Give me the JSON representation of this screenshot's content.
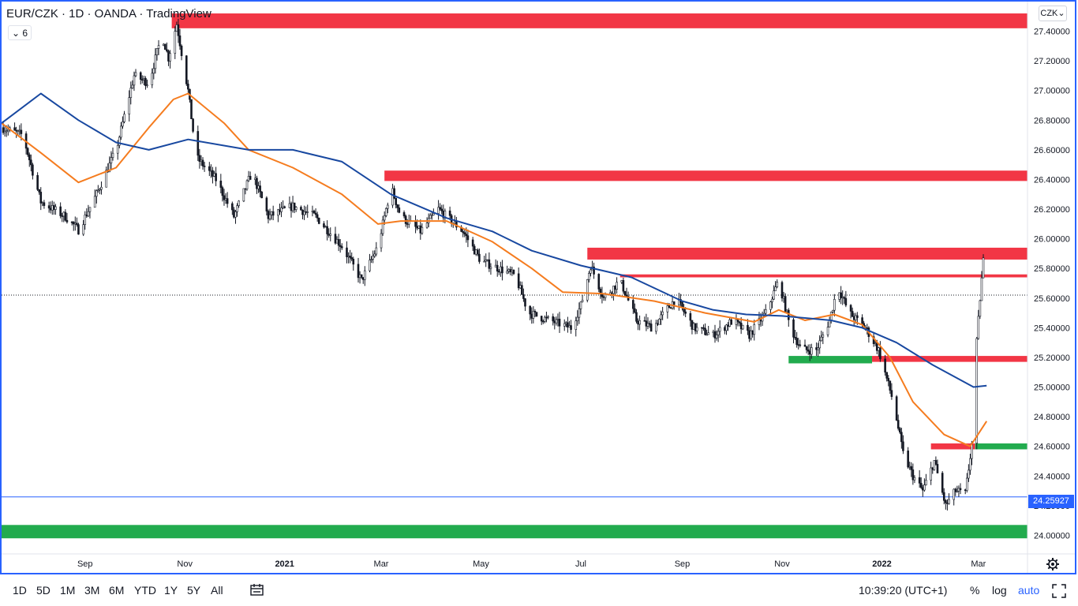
{
  "header": {
    "title": "EUR/CZK · 1D · OANDA · TradingView",
    "indicator_count": "6",
    "collapse_icon": "chevron-down-icon"
  },
  "currency_button": {
    "label": "CZK",
    "icon": "chevron-down-icon"
  },
  "chart_data": {
    "type": "candlestick",
    "symbol": "EUR/CZK",
    "interval": "1D",
    "source": "OANDA",
    "ylim": [
      23.88,
      27.6
    ],
    "y_ticks": [
      "27.40000",
      "27.20000",
      "27.00000",
      "26.80000",
      "26.60000",
      "26.40000",
      "26.20000",
      "26.00000",
      "25.80000",
      "25.60000",
      "25.40000",
      "25.20000",
      "25.00000",
      "24.80000",
      "24.60000",
      "24.40000",
      "24.20000",
      "24.00000"
    ],
    "y_tick_values": [
      27.4,
      27.2,
      27.0,
      26.8,
      26.6,
      26.4,
      26.2,
      26.0,
      25.8,
      25.6,
      25.4,
      25.2,
      25.0,
      24.8,
      24.6,
      24.4,
      24.2,
      24.0
    ],
    "x_range": [
      "2020-07-12",
      "2022-03-31"
    ],
    "x_ticks": [
      {
        "label": "Sep",
        "date": "2020-09-01",
        "bold": false
      },
      {
        "label": "Nov",
        "date": "2020-11-01",
        "bold": false
      },
      {
        "label": "2021",
        "date": "2021-01-01",
        "bold": true
      },
      {
        "label": "Mar",
        "date": "2021-03-01",
        "bold": false
      },
      {
        "label": "May",
        "date": "2021-05-01",
        "bold": false
      },
      {
        "label": "Jul",
        "date": "2021-07-01",
        "bold": false
      },
      {
        "label": "Sep",
        "date": "2021-09-01",
        "bold": false
      },
      {
        "label": "Nov",
        "date": "2021-11-01",
        "bold": false
      },
      {
        "label": "2022",
        "date": "2022-01-01",
        "bold": true
      },
      {
        "label": "Mar",
        "date": "2022-03-01",
        "bold": false
      }
    ],
    "price_path": [
      [
        "2020-07-12",
        26.75
      ],
      [
        "2020-07-25",
        26.7
      ],
      [
        "2020-08-05",
        26.25
      ],
      [
        "2020-08-20",
        26.15
      ],
      [
        "2020-08-28",
        26.06
      ],
      [
        "2020-09-08",
        26.3
      ],
      [
        "2020-09-20",
        26.6
      ],
      [
        "2020-10-01",
        27.1
      ],
      [
        "2020-10-10",
        27.05
      ],
      [
        "2020-10-18",
        27.38
      ],
      [
        "2020-10-22",
        27.22
      ],
      [
        "2020-10-27",
        27.45
      ],
      [
        "2020-11-03",
        27.0
      ],
      [
        "2020-11-08",
        26.55
      ],
      [
        "2020-11-20",
        26.4
      ],
      [
        "2020-12-01",
        26.15
      ],
      [
        "2020-12-12",
        26.45
      ],
      [
        "2020-12-22",
        26.15
      ],
      [
        "2021-01-06",
        26.22
      ],
      [
        "2021-01-20",
        26.15
      ],
      [
        "2021-02-05",
        25.95
      ],
      [
        "2021-02-17",
        25.72
      ],
      [
        "2021-02-27",
        25.95
      ],
      [
        "2021-03-07",
        26.35
      ],
      [
        "2021-03-13",
        26.15
      ],
      [
        "2021-03-25",
        26.05
      ],
      [
        "2021-04-05",
        26.2
      ],
      [
        "2021-04-20",
        26.05
      ],
      [
        "2021-05-01",
        25.85
      ],
      [
        "2021-05-12",
        25.8
      ],
      [
        "2021-05-22",
        25.75
      ],
      [
        "2021-05-30",
        25.5
      ],
      [
        "2021-06-12",
        25.45
      ],
      [
        "2021-06-25",
        25.4
      ],
      [
        "2021-07-01",
        25.55
      ],
      [
        "2021-07-07",
        25.82
      ],
      [
        "2021-07-15",
        25.6
      ],
      [
        "2021-07-25",
        25.72
      ],
      [
        "2021-08-04",
        25.45
      ],
      [
        "2021-08-14",
        25.4
      ],
      [
        "2021-08-28",
        25.6
      ],
      [
        "2021-09-08",
        25.4
      ],
      [
        "2021-09-20",
        25.35
      ],
      [
        "2021-10-02",
        25.45
      ],
      [
        "2021-10-12",
        25.35
      ],
      [
        "2021-10-22",
        25.5
      ],
      [
        "2021-10-30",
        25.72
      ],
      [
        "2021-11-06",
        25.4
      ],
      [
        "2021-11-13",
        25.25
      ],
      [
        "2021-11-22",
        25.25
      ],
      [
        "2021-11-30",
        25.45
      ],
      [
        "2021-12-05",
        25.68
      ],
      [
        "2021-12-12",
        25.5
      ],
      [
        "2021-12-22",
        25.4
      ],
      [
        "2021-12-30",
        25.25
      ],
      [
        "2022-01-08",
        24.9
      ],
      [
        "2022-01-14",
        24.55
      ],
      [
        "2022-01-20",
        24.4
      ],
      [
        "2022-01-26",
        24.3
      ],
      [
        "2022-02-02",
        24.5
      ],
      [
        "2022-02-09",
        24.2
      ],
      [
        "2022-02-15",
        24.3
      ],
      [
        "2022-02-21",
        24.28
      ],
      [
        "2022-02-26",
        24.7
      ],
      [
        "2022-02-28",
        25.3
      ],
      [
        "2022-03-02",
        25.6
      ],
      [
        "2022-03-04",
        25.85
      ],
      [
        "2022-03-05",
        25.7
      ]
    ],
    "series": [
      {
        "name": "",
        "color": "#f57c1f",
        "values": [
          [
            "2020-07-12",
            26.78
          ],
          [
            "2020-08-05",
            26.58
          ],
          [
            "2020-08-28",
            26.38
          ],
          [
            "2020-09-20",
            26.48
          ],
          [
            "2020-10-10",
            26.75
          ],
          [
            "2020-10-25",
            26.94
          ],
          [
            "2020-11-03",
            26.98
          ],
          [
            "2020-11-25",
            26.78
          ],
          [
            "2020-12-10",
            26.6
          ],
          [
            "2021-01-06",
            26.48
          ],
          [
            "2021-02-05",
            26.3
          ],
          [
            "2021-02-27",
            26.1
          ],
          [
            "2021-03-13",
            26.12
          ],
          [
            "2021-04-10",
            26.12
          ],
          [
            "2021-05-08",
            25.98
          ],
          [
            "2021-06-01",
            25.8
          ],
          [
            "2021-06-20",
            25.64
          ],
          [
            "2021-07-15",
            25.63
          ],
          [
            "2021-08-15",
            25.58
          ],
          [
            "2021-09-15",
            25.5
          ],
          [
            "2021-10-15",
            25.44
          ],
          [
            "2021-10-30",
            25.52
          ],
          [
            "2021-11-15",
            25.45
          ],
          [
            "2021-12-03",
            25.49
          ],
          [
            "2021-12-20",
            25.42
          ],
          [
            "2022-01-06",
            25.2
          ],
          [
            "2022-01-20",
            24.9
          ],
          [
            "2022-02-08",
            24.68
          ],
          [
            "2022-02-24",
            24.6
          ],
          [
            "2022-03-06",
            24.77
          ]
        ]
      },
      {
        "name": "",
        "color": "#1848a0",
        "values": [
          [
            "2020-07-12",
            26.78
          ],
          [
            "2020-08-05",
            26.98
          ],
          [
            "2020-08-28",
            26.8
          ],
          [
            "2020-09-20",
            26.65
          ],
          [
            "2020-10-10",
            26.6
          ],
          [
            "2020-11-03",
            26.67
          ],
          [
            "2020-12-10",
            26.6
          ],
          [
            "2021-01-06",
            26.6
          ],
          [
            "2021-02-05",
            26.52
          ],
          [
            "2021-03-07",
            26.3
          ],
          [
            "2021-04-10",
            26.14
          ],
          [
            "2021-05-08",
            26.05
          ],
          [
            "2021-06-01",
            25.92
          ],
          [
            "2021-07-01",
            25.82
          ],
          [
            "2021-08-01",
            25.74
          ],
          [
            "2021-09-01",
            25.58
          ],
          [
            "2021-09-20",
            25.52
          ],
          [
            "2021-10-10",
            25.49
          ],
          [
            "2021-11-01",
            25.48
          ],
          [
            "2021-12-01",
            25.45
          ],
          [
            "2021-12-20",
            25.4
          ],
          [
            "2022-01-10",
            25.3
          ],
          [
            "2022-02-01",
            25.15
          ],
          [
            "2022-02-26",
            25.0
          ],
          [
            "2022-03-06",
            25.01
          ]
        ]
      }
    ],
    "zones": [
      {
        "color": "#f23645",
        "y0": 27.42,
        "y1": 27.52,
        "start": "2020-10-24"
      },
      {
        "color": "#f23645",
        "y0": 26.39,
        "y1": 26.46,
        "start": "2021-03-03"
      },
      {
        "color": "#f23645",
        "y0": 25.86,
        "y1": 25.94,
        "start": "2021-07-05"
      },
      {
        "color": "#f23645",
        "y0": 25.74,
        "y1": 25.76,
        "start": "2021-07-25"
      },
      {
        "color": "#f23645",
        "y0": 25.17,
        "y1": 25.21,
        "start": "2021-12-26"
      },
      {
        "color": "#22ab4e",
        "y0": 25.16,
        "y1": 25.21,
        "start": "2021-11-05",
        "end": "2021-12-26"
      },
      {
        "color": "#22ab4e",
        "y0": 24.58,
        "y1": 24.62,
        "start": "2022-02-27"
      },
      {
        "color": "#f23645",
        "y0": 24.58,
        "y1": 24.62,
        "start": "2022-01-31",
        "end": "2022-02-27"
      },
      {
        "color": "#22ab4e",
        "y0": 23.98,
        "y1": 24.07,
        "start": "2020-07-12"
      }
    ],
    "horizontal_lines": [
      {
        "value": 25.62,
        "style": "dotted",
        "color": "#131722"
      },
      {
        "value": 24.25927,
        "style": "solid",
        "color": "#2962ff",
        "label": "24.25927"
      }
    ]
  },
  "bottom_bar": {
    "ranges": [
      "1D",
      "5D",
      "1M",
      "3M",
      "6M",
      "YTD",
      "1Y",
      "5Y",
      "All"
    ],
    "compare_icon": "date-range-icon",
    "time": "10:39:20 (UTC+1)",
    "percent_label": "%",
    "log_label": "log",
    "auto_label": "auto",
    "fullscreen_icon": "fullscreen-icon",
    "settings_icon": "gear-icon"
  }
}
